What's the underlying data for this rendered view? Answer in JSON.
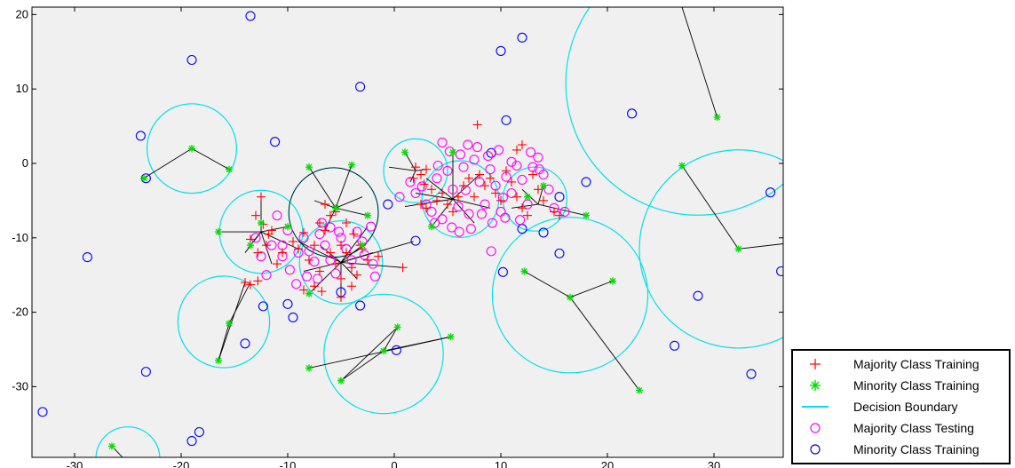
{
  "chart_data": {
    "type": "scatter",
    "title": "",
    "xlabel": "",
    "ylabel": "",
    "xlim": [
      -34,
      36.5
    ],
    "ylim": [
      -39.5,
      21
    ],
    "xticks": [
      -30,
      -20,
      -10,
      0,
      10,
      20,
      30
    ],
    "yticks": [
      -30,
      -20,
      -10,
      0,
      10,
      20
    ],
    "xtick_labels": [
      "-30",
      "-20",
      "-10",
      "0",
      "10",
      "20",
      "30"
    ],
    "ytick_labels": [
      "-30",
      "-20",
      "-10",
      "0",
      "10",
      "20"
    ],
    "grid": false,
    "background": "#f0f0f0",
    "legend_position": "bottom-right outside",
    "colors": {
      "majority_training": "#ff0000",
      "minority_training": "#00dd00",
      "decision_boundary": "#00e0e8",
      "majority_testing": "#ff00ff",
      "minority_testing": "#0000ff",
      "neighbor_line": "#000000"
    },
    "legend": [
      {
        "label": "Majority Class Training",
        "marker": "plus",
        "color": "#ff0000"
      },
      {
        "label": "Minority Class Training",
        "marker": "asterisk",
        "color": "#00dd00"
      },
      {
        "label": "Decision Boundary",
        "marker": "line",
        "color": "#00e0e8"
      },
      {
        "label": "Majority Class Testing",
        "marker": "circle",
        "color": "#ff00ff"
      },
      {
        "label": "Minority Class Training",
        "marker": "circle",
        "color": "#0000ff"
      }
    ],
    "majority_training": [
      [
        -12.5,
        -4.5
      ],
      [
        -13,
        -7
      ],
      [
        -12.3,
        -8.2
      ],
      [
        -11.8,
        -9.5
      ],
      [
        -13.5,
        -10.2
      ],
      [
        -12.8,
        -12
      ],
      [
        -11.5,
        -9
      ],
      [
        -12,
        -11
      ],
      [
        -10.5,
        -12
      ],
      [
        -11,
        -13.5
      ],
      [
        -9.5,
        -10.5
      ],
      [
        -8.5,
        -9.3
      ],
      [
        -9,
        -11.5
      ],
      [
        -7.5,
        -11
      ],
      [
        -8,
        -13
      ],
      [
        -7,
        -14.5
      ],
      [
        -6.5,
        -9
      ],
      [
        -6,
        -12
      ],
      [
        -5.5,
        -13.5
      ],
      [
        -4.5,
        -12
      ],
      [
        -4,
        -14
      ],
      [
        -5,
        -15.5
      ],
      [
        -3.5,
        -15
      ],
      [
        -3,
        -11.5
      ],
      [
        -2.5,
        -13
      ],
      [
        -5,
        -11
      ],
      [
        -6,
        -7
      ],
      [
        -6.5,
        -5.5
      ],
      [
        -5.5,
        -6.5
      ],
      [
        -4.5,
        -8
      ],
      [
        -7,
        -8
      ],
      [
        -3.8,
        -9.5
      ],
      [
        -7.5,
        -16.5
      ],
      [
        -6.8,
        -17.2
      ],
      [
        -5,
        -18
      ],
      [
        -4,
        -16.5
      ],
      [
        0.8,
        -14
      ],
      [
        -1.5,
        -12.5
      ],
      [
        -3.2,
        -11
      ],
      [
        -8.5,
        -17
      ],
      [
        -14,
        -16
      ],
      [
        -13.5,
        -16.3
      ],
      [
        -12.8,
        -15.8
      ],
      [
        2,
        -0.5
      ],
      [
        2.5,
        -1.5
      ],
      [
        1.8,
        -2
      ],
      [
        3,
        -0.8
      ],
      [
        2.8,
        -2.8
      ],
      [
        3.5,
        -3.5
      ],
      [
        4,
        -5
      ],
      [
        4.5,
        -4
      ],
      [
        5,
        -5.5
      ],
      [
        5.5,
        -6.5
      ],
      [
        6,
        -4.5
      ],
      [
        6.5,
        -3
      ],
      [
        7,
        -2
      ],
      [
        7.5,
        -4.5
      ],
      [
        8,
        -1.5
      ],
      [
        8.5,
        -3
      ],
      [
        9,
        -2
      ],
      [
        9.5,
        -4
      ],
      [
        10,
        -5
      ],
      [
        10.5,
        -1
      ],
      [
        11,
        -2.5
      ],
      [
        11.5,
        -4.5
      ],
      [
        12,
        -6
      ],
      [
        12.5,
        -7
      ],
      [
        13,
        -1.5
      ],
      [
        13.5,
        -3.5
      ],
      [
        14,
        -5
      ],
      [
        15,
        -6.5
      ],
      [
        15.5,
        -7
      ],
      [
        7.8,
        5.2
      ],
      [
        11.5,
        1.8
      ],
      [
        12,
        2.5
      ],
      [
        3,
        -6
      ],
      [
        2.5,
        -5.5
      ]
    ],
    "minority_training": [
      [
        -19,
        2
      ],
      [
        -15.5,
        -0.8
      ],
      [
        -23.5,
        -2
      ],
      [
        -16.5,
        -9.2
      ],
      [
        -13.5,
        -11
      ],
      [
        -12.5,
        -8
      ],
      [
        -10,
        -8.5
      ],
      [
        -8,
        -0.5
      ],
      [
        -4,
        -0.2
      ],
      [
        -5.5,
        -6
      ],
      [
        -2.5,
        -7
      ],
      [
        -3,
        -11
      ],
      [
        -8,
        -17.5
      ],
      [
        1,
        1.5
      ],
      [
        5.5,
        1.5
      ],
      [
        3.5,
        -8.5
      ],
      [
        14,
        -3
      ],
      [
        18,
        -7
      ],
      [
        12.5,
        -4.5
      ],
      [
        -15.5,
        -21.5
      ],
      [
        -16.5,
        -26.5
      ],
      [
        -8,
        -27.5
      ],
      [
        -5,
        -29.2
      ],
      [
        0.3,
        -22
      ],
      [
        5.3,
        -23.3
      ],
      [
        -1,
        -25.2
      ],
      [
        12.2,
        -14.5
      ],
      [
        16.5,
        -18
      ],
      [
        20.5,
        -15.8
      ],
      [
        23,
        -30.5
      ],
      [
        27,
        -0.3
      ],
      [
        30.3,
        6.2
      ],
      [
        32.3,
        -11.5
      ],
      [
        -26.5,
        -38
      ]
    ],
    "majority_testing": [
      [
        -13,
        -10
      ],
      [
        -12.5,
        -12.5
      ],
      [
        -11,
        -7
      ],
      [
        -11.5,
        -11
      ],
      [
        -10,
        -9
      ],
      [
        -10.5,
        -12.5
      ],
      [
        -9.8,
        -14.3
      ],
      [
        -9,
        -12
      ],
      [
        -8.5,
        -10
      ],
      [
        -8,
        -11.8
      ],
      [
        -7.5,
        -13.2
      ],
      [
        -7,
        -9.5
      ],
      [
        -6.5,
        -11
      ],
      [
        -6,
        -13
      ],
      [
        -5.5,
        -14.8
      ],
      [
        -5,
        -10
      ],
      [
        -4.5,
        -11.5
      ],
      [
        -4,
        -13
      ],
      [
        -3.5,
        -9.2
      ],
      [
        -3,
        -10.5
      ],
      [
        -2.8,
        -12.3
      ],
      [
        -2.2,
        -8.5
      ],
      [
        -2,
        -13.5
      ],
      [
        -1.8,
        -15.2
      ],
      [
        -6.8,
        -8
      ],
      [
        -7.2,
        -15.5
      ],
      [
        -8.2,
        -15.2
      ],
      [
        -12,
        -15
      ],
      [
        -9.2,
        -16.2
      ],
      [
        -6,
        -8.6
      ],
      [
        -5.2,
        -9.2
      ],
      [
        -10.5,
        -11
      ],
      [
        0.5,
        -4.5
      ],
      [
        1.5,
        -2.5
      ],
      [
        2,
        -4
      ],
      [
        2.6,
        -3.1
      ],
      [
        3,
        -5.5
      ],
      [
        3.5,
        -6.5
      ],
      [
        4,
        -2
      ],
      [
        4.5,
        -7.5
      ],
      [
        5,
        -1
      ],
      [
        5.5,
        -3.5
      ],
      [
        6,
        -5.8
      ],
      [
        6.5,
        -0.5
      ],
      [
        7,
        -6.8
      ],
      [
        7.5,
        0.5
      ],
      [
        8,
        -2.5
      ],
      [
        8.5,
        -5.5
      ],
      [
        9,
        -0.8
      ],
      [
        9.5,
        -3
      ],
      [
        10,
        -6.5
      ],
      [
        10.5,
        -1.8
      ],
      [
        11,
        -4
      ],
      [
        11.5,
        -0.3
      ],
      [
        12,
        -2.2
      ],
      [
        12.5,
        -5.5
      ],
      [
        13,
        -0.5
      ],
      [
        13.5,
        0.8
      ],
      [
        14,
        -1.5
      ],
      [
        14.5,
        -3.5
      ],
      [
        15,
        -6
      ],
      [
        16,
        -6.5
      ],
      [
        4.5,
        2.8
      ],
      [
        5.2,
        1.6
      ],
      [
        6.2,
        1.2
      ],
      [
        7.8,
        2.2
      ],
      [
        8.8,
        1
      ],
      [
        9.8,
        1.8
      ],
      [
        11,
        0.2
      ],
      [
        12.8,
        1.5
      ],
      [
        13.6,
        -0.8
      ],
      [
        6.7,
        -3.6
      ],
      [
        8.2,
        -6.8
      ],
      [
        9.2,
        -8
      ],
      [
        10.4,
        -7.3
      ],
      [
        11.8,
        -7.6
      ],
      [
        5.4,
        -8.6
      ],
      [
        6.1,
        -9.2
      ],
      [
        7.2,
        -8.8
      ],
      [
        9.1,
        -11.8
      ],
      [
        3.8,
        -8
      ],
      [
        6.9,
        2.5
      ],
      [
        4.1,
        -0.3
      ],
      [
        10.2,
        -4.6
      ]
    ],
    "minority_testing": [
      [
        -13.5,
        19.8
      ],
      [
        -19,
        13.9
      ],
      [
        -3.2,
        10.3
      ],
      [
        -23.8,
        3.7
      ],
      [
        -11.2,
        2.9
      ],
      [
        -23.3,
        -2
      ],
      [
        10,
        15.1
      ],
      [
        12,
        16.9
      ],
      [
        10.5,
        5.8
      ],
      [
        22.3,
        6.7
      ],
      [
        18,
        -2.5
      ],
      [
        15.5,
        -4.5
      ],
      [
        14,
        -9.3
      ],
      [
        12,
        -8.8
      ],
      [
        -0.6,
        -5.5
      ],
      [
        2,
        -10.4
      ],
      [
        15.5,
        -12.1
      ],
      [
        35.3,
        -3.9
      ],
      [
        36.3,
        -14.5
      ],
      [
        28.5,
        -17.8
      ],
      [
        26.3,
        -24.5
      ],
      [
        33.5,
        -28.3
      ],
      [
        10.2,
        -14.6
      ],
      [
        -28.8,
        -12.6
      ],
      [
        -12.3,
        -19.2
      ],
      [
        -10,
        -18.9
      ],
      [
        -9.5,
        -20.7
      ],
      [
        -14,
        -24.2
      ],
      [
        -3.2,
        -19.1
      ],
      [
        -5,
        -17.3
      ],
      [
        0.2,
        -25.1
      ],
      [
        -23.3,
        -28
      ],
      [
        -33,
        -33.4
      ],
      [
        -18.3,
        -36.1
      ],
      [
        -19,
        -37.3
      ],
      [
        9.1,
        1.4
      ]
    ],
    "decision_boundaries": [
      [
        -19,
        2,
        4.2
      ],
      [
        -12.5,
        -9.2,
        3.9
      ],
      [
        -5.7,
        -6.6,
        4.2
      ],
      [
        -5,
        -13.3,
        3.9
      ],
      [
        2,
        -1,
        3
      ],
      [
        6.2,
        -4.8,
        3.6
      ],
      [
        13.2,
        -4.8,
        3
      ],
      [
        -16,
        -21.3,
        4.3
      ],
      [
        -1,
        -25.6,
        5.6
      ],
      [
        16.5,
        -17.7,
        7.3
      ],
      [
        28.5,
        10.8,
        12.4
      ],
      [
        32.3,
        -11.5,
        9.3
      ],
      [
        -25,
        -39.7,
        3
      ]
    ],
    "neighbor_links": [
      [
        -19,
        2,
        -15.5,
        -0.8
      ],
      [
        -19,
        2,
        -23.5,
        -2
      ],
      [
        -12.5,
        -9.2,
        -16.5,
        -9.2
      ],
      [
        -12.5,
        -9.2,
        -13.5,
        -11
      ],
      [
        -12.5,
        -9.2,
        -10,
        -8.5
      ],
      [
        -12.5,
        -9.2,
        -12.5,
        -4.5
      ],
      [
        -12.5,
        -9.2,
        -9,
        -11.5
      ],
      [
        -12.5,
        -9.2,
        -11.5,
        -13.5
      ],
      [
        -12.5,
        -9.2,
        -14,
        -12
      ],
      [
        -5.5,
        -6,
        -8,
        -0.5
      ],
      [
        -5.5,
        -6,
        -4,
        -0.2
      ],
      [
        -5.5,
        -6,
        -2.5,
        -7
      ],
      [
        -5.5,
        -6,
        -6.5,
        -9
      ],
      [
        -5.5,
        -6,
        -3,
        -4.5
      ],
      [
        -5.5,
        -6,
        -7.5,
        -5
      ],
      [
        -5,
        -13.3,
        -3,
        -11
      ],
      [
        -5,
        -13.3,
        -8,
        -17.5
      ],
      [
        -5,
        -13.3,
        0.8,
        -14
      ],
      [
        -5,
        -13.3,
        1.8,
        -10.5
      ],
      [
        -5,
        -13.3,
        -9,
        -10.5
      ],
      [
        -5,
        -13.3,
        -8.5,
        -14.5
      ],
      [
        -5,
        -13.3,
        -5,
        -18
      ],
      [
        -5,
        -13.3,
        -2.5,
        -8.5
      ],
      [
        -5,
        -13.3,
        -7,
        -11
      ],
      [
        -5,
        -13.3,
        -3.5,
        -15.5
      ],
      [
        -5,
        -13.3,
        -2,
        -12
      ],
      [
        2,
        -1,
        1,
        1.5
      ],
      [
        2,
        -1,
        -0.5,
        -0.5
      ],
      [
        2,
        -1,
        3,
        -0.8
      ],
      [
        2,
        -1,
        1.5,
        -2.5
      ],
      [
        5.5,
        -4.8,
        5.5,
        1.5
      ],
      [
        5.5,
        -4.8,
        3.5,
        -8.5
      ],
      [
        5.5,
        -4.8,
        2,
        -4
      ],
      [
        5.5,
        -4.8,
        8,
        -1.5
      ],
      [
        5.5,
        -4.8,
        3,
        -2
      ],
      [
        5.5,
        -4.8,
        1,
        -5.8
      ],
      [
        5.5,
        -4.8,
        7.5,
        -8
      ],
      [
        5.5,
        -4.8,
        9,
        -6
      ],
      [
        13.5,
        -5.5,
        14,
        -3
      ],
      [
        13.5,
        -5.5,
        18,
        -7
      ],
      [
        13.5,
        -5.5,
        11,
        -6
      ],
      [
        13.5,
        -5.5,
        12,
        -3.5
      ],
      [
        -15.5,
        -21.5,
        -16.5,
        -26.5
      ],
      [
        -15.5,
        -21.5,
        -13.5,
        -16
      ],
      [
        -16.5,
        -26.5,
        -14,
        -16
      ],
      [
        -1,
        -25.2,
        0.3,
        -22
      ],
      [
        -1,
        -25.2,
        5.3,
        -23.3
      ],
      [
        -1,
        -25.2,
        -5,
        -29.2
      ],
      [
        -8,
        -27.5,
        5.3,
        -23.3
      ],
      [
        -5,
        -29.2,
        0.3,
        -22
      ],
      [
        16.5,
        -18,
        12.2,
        -14.5
      ],
      [
        16.5,
        -18,
        20.5,
        -15.8
      ],
      [
        16.5,
        -18,
        23,
        -30.5
      ],
      [
        30.3,
        6.2,
        27,
        21
      ],
      [
        32.3,
        -11.5,
        27,
        -0.3
      ],
      [
        32.3,
        -11.5,
        36.5,
        -10.8
      ],
      [
        -26.5,
        -38,
        -25.5,
        -39.5
      ]
    ]
  }
}
